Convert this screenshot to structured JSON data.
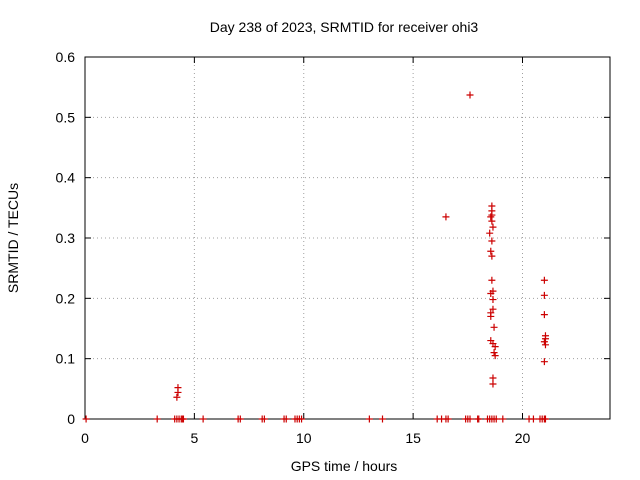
{
  "chart_data": {
    "type": "scatter",
    "title": "Day 238 of 2023, SRMTID for receiver ohi3",
    "xlabel": "GPS time / hours",
    "ylabel": "SRMTID / TECUs",
    "xlim": [
      0,
      24
    ],
    "ylim": [
      0,
      0.6
    ],
    "x_ticks": [
      0,
      5,
      10,
      15,
      20
    ],
    "x_tick_labels": [
      "0",
      "5",
      "10",
      "15",
      "20"
    ],
    "y_ticks": [
      0,
      0.1,
      0.2,
      0.3,
      0.4,
      0.5,
      0.6
    ],
    "y_tick_labels": [
      "0",
      "0.1",
      "0.2",
      "0.3",
      "0.4",
      "0.5",
      "0.6"
    ],
    "grid": true,
    "marker": "plus",
    "colors": {
      "points": "#cc0000",
      "axis": "#000000",
      "grid": "#a0a0a0"
    },
    "series": [
      {
        "name": "SRMTID",
        "points": [
          [
            0.05,
            0
          ],
          [
            3.3,
            0
          ],
          [
            4.1,
            0
          ],
          [
            4.2,
            0
          ],
          [
            4.3,
            0
          ],
          [
            4.4,
            0
          ],
          [
            4.45,
            0
          ],
          [
            4.5,
            0
          ],
          [
            5.4,
            0
          ],
          [
            7.0,
            0
          ],
          [
            7.1,
            0
          ],
          [
            8.1,
            0
          ],
          [
            8.2,
            0
          ],
          [
            9.1,
            0
          ],
          [
            9.2,
            0
          ],
          [
            9.6,
            0
          ],
          [
            9.7,
            0
          ],
          [
            9.8,
            0
          ],
          [
            9.9,
            0
          ],
          [
            13.0,
            0
          ],
          [
            13.6,
            0
          ],
          [
            16.1,
            0
          ],
          [
            16.3,
            0
          ],
          [
            16.5,
            0
          ],
          [
            16.6,
            0
          ],
          [
            17.4,
            0
          ],
          [
            17.5,
            0
          ],
          [
            17.6,
            0
          ],
          [
            17.95,
            0
          ],
          [
            18.0,
            0
          ],
          [
            18.4,
            0
          ],
          [
            18.5,
            0
          ],
          [
            18.6,
            0
          ],
          [
            18.7,
            0
          ],
          [
            18.8,
            0
          ],
          [
            19.1,
            0
          ],
          [
            20.3,
            0
          ],
          [
            20.5,
            0
          ],
          [
            20.8,
            0
          ],
          [
            20.9,
            0
          ],
          [
            21.0,
            0
          ],
          [
            21.05,
            0
          ],
          [
            4.25,
            0.052
          ],
          [
            4.25,
            0.044
          ],
          [
            4.2,
            0.036
          ],
          [
            16.5,
            0.335
          ],
          [
            17.6,
            0.537
          ],
          [
            18.6,
            0.353
          ],
          [
            18.6,
            0.345
          ],
          [
            18.6,
            0.338
          ],
          [
            18.55,
            0.335
          ],
          [
            18.6,
            0.328
          ],
          [
            18.65,
            0.318
          ],
          [
            18.5,
            0.308
          ],
          [
            18.6,
            0.295
          ],
          [
            18.55,
            0.278
          ],
          [
            18.6,
            0.27
          ],
          [
            18.6,
            0.23
          ],
          [
            18.65,
            0.212
          ],
          [
            18.55,
            0.208
          ],
          [
            18.65,
            0.198
          ],
          [
            18.65,
            0.182
          ],
          [
            18.55,
            0.176
          ],
          [
            18.55,
            0.17
          ],
          [
            18.7,
            0.152
          ],
          [
            18.55,
            0.13
          ],
          [
            18.65,
            0.125
          ],
          [
            18.75,
            0.12
          ],
          [
            18.7,
            0.11
          ],
          [
            18.75,
            0.105
          ],
          [
            18.65,
            0.068
          ],
          [
            18.65,
            0.058
          ],
          [
            21.0,
            0.23
          ],
          [
            21.0,
            0.205
          ],
          [
            21.0,
            0.173
          ],
          [
            21.05,
            0.138
          ],
          [
            21.05,
            0.133
          ],
          [
            21.0,
            0.128
          ],
          [
            21.05,
            0.123
          ],
          [
            21.0,
            0.095
          ]
        ]
      }
    ]
  }
}
